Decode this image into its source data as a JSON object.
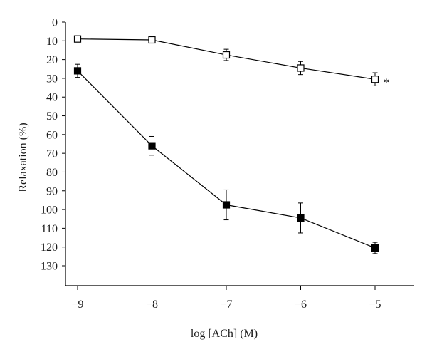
{
  "chart_data": {
    "type": "line",
    "title": "",
    "xlabel": "log [ACh] (M)",
    "ylabel": "Relaxation (%)",
    "x": [
      -9,
      -8,
      -7,
      -6,
      -5
    ],
    "xlim": [
      -9,
      -4.5
    ],
    "ylim": [
      0,
      130
    ],
    "y_inverted": true,
    "x_ticks": [
      "−9",
      "−8",
      "−7",
      "−6",
      "−5"
    ],
    "y_ticks": [
      "0",
      "10",
      "20",
      "30",
      "40",
      "50",
      "60",
      "70",
      "80",
      "90",
      "100",
      "110",
      "120",
      "130"
    ],
    "grid": false,
    "legend": "none",
    "series": [
      {
        "marker": "open-square",
        "color": "#000000",
        "values": [
          9,
          9.5,
          17.5,
          24.5,
          30.5
        ],
        "errors": [
          1,
          1,
          3,
          3.5,
          3.5
        ]
      },
      {
        "marker": "filled-square",
        "color": "#000000",
        "values": [
          26,
          66,
          97.5,
          104.5,
          120.5
        ],
        "errors": [
          3.5,
          5,
          8,
          8,
          3
        ]
      }
    ],
    "annotations": [
      {
        "text": "*",
        "series_index": 0,
        "x": -5
      }
    ]
  }
}
